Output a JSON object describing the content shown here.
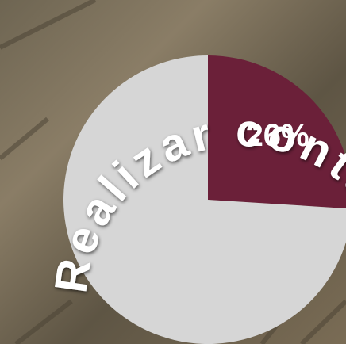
{
  "chart_data": {
    "type": "pie",
    "title": "Realizar contactos",
    "categories": [
      null,
      null
    ],
    "values": [
      26,
      74
    ],
    "value_labels": [
      "26%",
      null
    ],
    "colors": [
      "#6b2039",
      "#d6d6d6"
    ]
  }
}
